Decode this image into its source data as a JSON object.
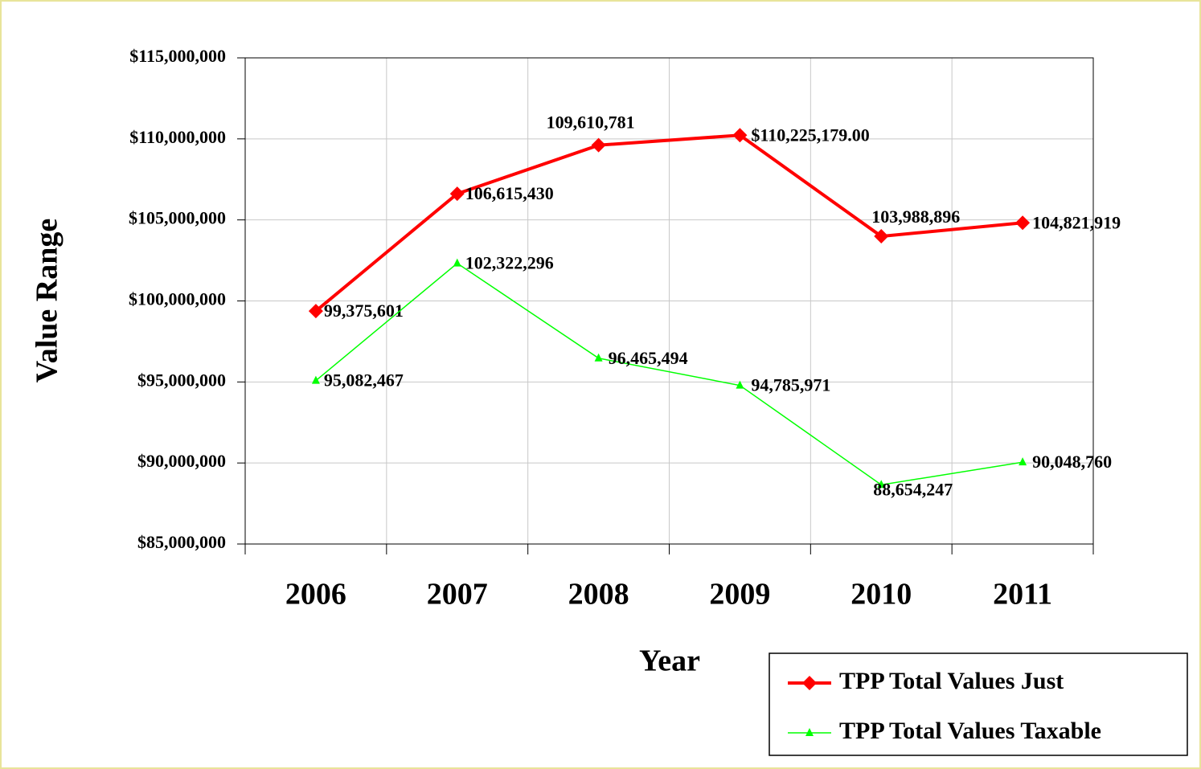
{
  "chart_data": {
    "type": "line",
    "x_label": "Year",
    "y_label": "Value Range",
    "categories": [
      "2006",
      "2007",
      "2008",
      "2009",
      "2010",
      "2011"
    ],
    "series": [
      {
        "name": "TPP Total Values Just",
        "color": "#ff0000",
        "marker": "diamond",
        "values": [
          99375601,
          106615430,
          109610781,
          110225179,
          103988896,
          104821919
        ],
        "value_labels": [
          "99,375,601",
          "106,615,430",
          "109,610,781",
          "$110,225,179.00",
          "103,988,896",
          "104,821,919"
        ]
      },
      {
        "name": "TPP Total Values Taxable",
        "color": "#00ff00",
        "marker": "triangle",
        "values": [
          95082467,
          102322296,
          96465494,
          94785971,
          88654247,
          90048760
        ],
        "value_labels": [
          "95,082,467",
          "102,322,296",
          "96,465,494",
          "94,785,971",
          "88,654,247",
          "90,048,760"
        ]
      }
    ],
    "ylim": [
      85000000,
      115000000
    ],
    "yticks": [
      {
        "value": 85000000,
        "label": "$85,000,000"
      },
      {
        "value": 90000000,
        "label": "$90,000,000"
      },
      {
        "value": 95000000,
        "label": "$95,000,000"
      },
      {
        "value": 100000000,
        "label": "$100,000,000"
      },
      {
        "value": 105000000,
        "label": "$105,000,000"
      },
      {
        "value": 110000000,
        "label": "$110,000,000"
      },
      {
        "value": 115000000,
        "label": "$115,000,000"
      }
    ],
    "grid": true,
    "legend": "lower right"
  }
}
